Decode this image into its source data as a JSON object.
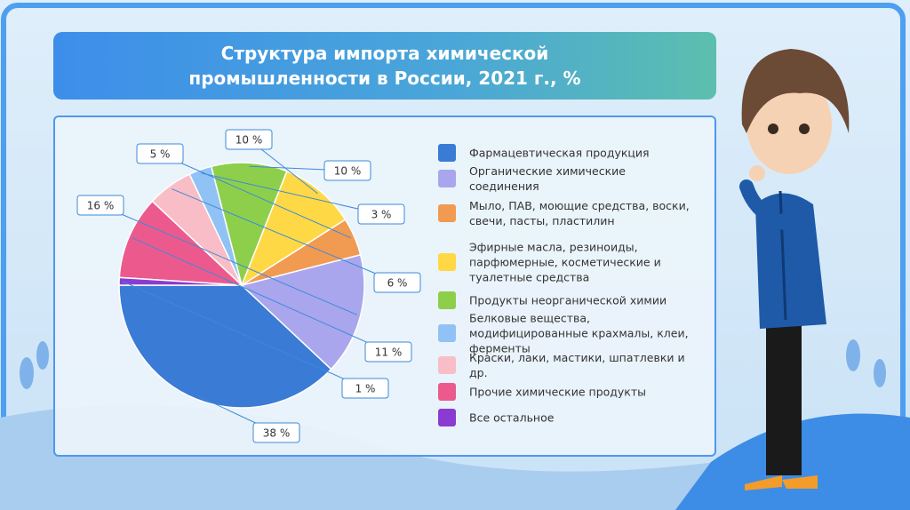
{
  "chart_data": {
    "type": "pie",
    "title": "Структура импорта химической промышленности в России, 2021 г., %",
    "categories": [
      "Фармацевтическая продукция",
      "Органические химические соединения",
      "Мыло, ПАВ, моющие средства, воски, свечи, пасты, пластилин",
      "Эфирные масла, резиноиды, парфюмерные, косметические и туалетные средства",
      "Продукты неорганической химии",
      "Белковые вещества, модифицированные крахмалы, клеи, ферменты",
      "Краски, лаки, мастики, шпатлевки и др.",
      "Прочие химические продукты",
      "Все остальное"
    ],
    "values": [
      38,
      16,
      5,
      10,
      10,
      3,
      6,
      11,
      1
    ],
    "value_labels": [
      "38 %",
      "16 %",
      "5 %",
      "10 %",
      "10 %",
      "3 %",
      "6 %",
      "11 %",
      "1 %"
    ],
    "colors": [
      "#3a7bd5",
      "#a9a6ee",
      "#f19a52",
      "#ffd845",
      "#8dcf4b",
      "#90c2f6",
      "#f8bdc6",
      "#ec5a8d",
      "#8b3bd2"
    ]
  }
}
